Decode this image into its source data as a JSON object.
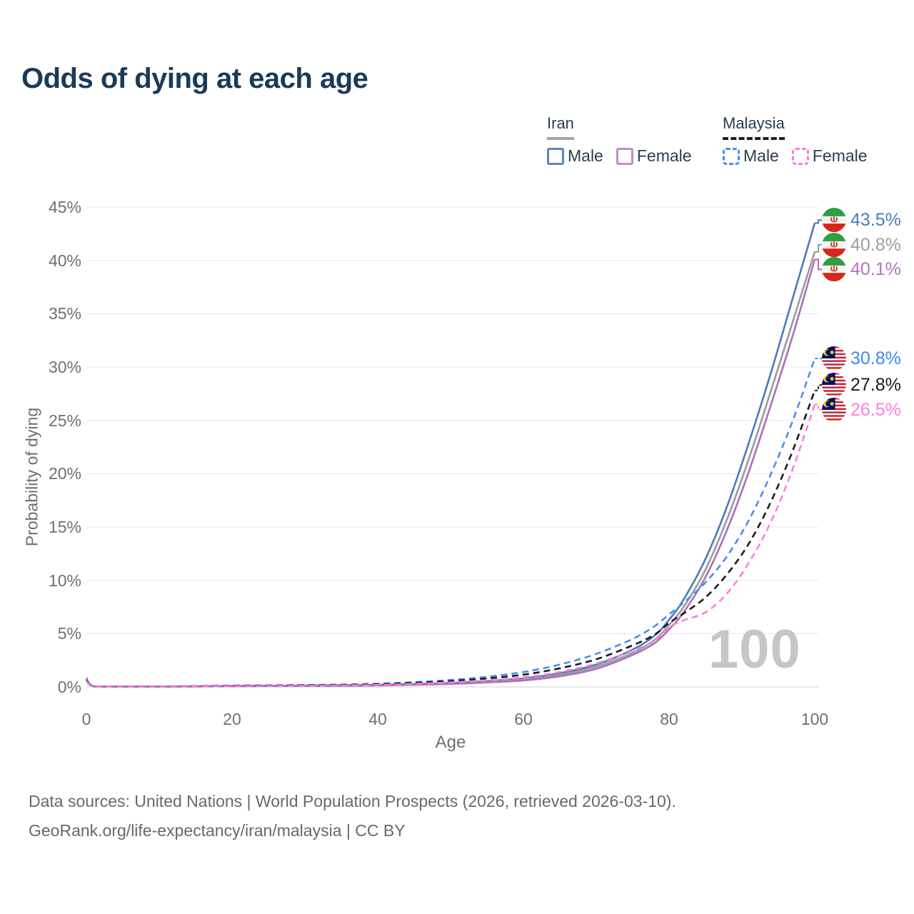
{
  "header": {
    "title": "Odds of dying at each age"
  },
  "legend": {
    "groups": [
      {
        "country": "Iran",
        "line_style": "solid",
        "underline_color": "#a4a4a4",
        "items": [
          {
            "label": "Male",
            "color": "#5b84c4",
            "dashed": false
          },
          {
            "label": "Female",
            "color": "#c48bc8",
            "dashed": false
          }
        ]
      },
      {
        "country": "Malaysia",
        "line_style": "dashed",
        "underline_color": "#1c1c1c",
        "items": [
          {
            "label": "Male",
            "color": "#4a8df0",
            "dashed": true
          },
          {
            "label": "Female",
            "color": "#ff7de0",
            "dashed": true
          }
        ]
      }
    ]
  },
  "chart_data": {
    "type": "line",
    "title": "Odds of dying at each age",
    "xlabel": "Age",
    "ylabel": "Probability of dying",
    "xlim": [
      0,
      100
    ],
    "ylim": [
      0,
      45
    ],
    "x_ticks": [
      0,
      20,
      40,
      60,
      80,
      100
    ],
    "y_ticks": [
      0,
      5,
      10,
      15,
      20,
      25,
      30,
      35,
      40,
      45
    ],
    "y_tick_suffix": "%",
    "grid": "horizontal",
    "legend_position": "top-right",
    "watermark": "100",
    "x": [
      0,
      1,
      5,
      10,
      15,
      20,
      25,
      30,
      35,
      40,
      45,
      50,
      55,
      60,
      65,
      70,
      75,
      78,
      80,
      82,
      85,
      88,
      91,
      94,
      97,
      100
    ],
    "series": [
      {
        "key": "iran-male",
        "name": "Iran Male",
        "country": "Iran",
        "sex": "Male",
        "color": "#4a7bbd",
        "dashed": false,
        "flag": "iran",
        "end_label": "43.5%",
        "end_value": 43.5,
        "label_color": "#4a7bbd",
        "values": [
          0.85,
          0.07,
          0.04,
          0.04,
          0.06,
          0.09,
          0.11,
          0.13,
          0.16,
          0.2,
          0.28,
          0.38,
          0.55,
          0.8,
          1.3,
          2.1,
          3.5,
          4.8,
          6.3,
          8.2,
          12.0,
          17.0,
          23.0,
          29.5,
          36.5,
          43.5
        ]
      },
      {
        "key": "iran-both",
        "name": "Iran",
        "country": "Iran",
        "sex": "Both",
        "color": "#9b9b9b",
        "dashed": false,
        "flag": "iran",
        "end_label": "40.8%",
        "end_value": 40.8,
        "label_color": "#9e9e9e",
        "values": [
          0.8,
          0.06,
          0.035,
          0.035,
          0.05,
          0.08,
          0.1,
          0.11,
          0.14,
          0.17,
          0.24,
          0.33,
          0.48,
          0.7,
          1.15,
          1.9,
          3.2,
          4.4,
          5.8,
          7.5,
          11.0,
          15.8,
          21.5,
          27.8,
          34.3,
          40.8
        ]
      },
      {
        "key": "iran-female",
        "name": "Iran Female",
        "country": "Iran",
        "sex": "Female",
        "color": "#ab6fb8",
        "dashed": false,
        "flag": "iran",
        "end_label": "40.1%",
        "end_value": 40.1,
        "label_color": "#b373c2",
        "values": [
          0.75,
          0.06,
          0.03,
          0.03,
          0.04,
          0.06,
          0.08,
          0.09,
          0.11,
          0.14,
          0.2,
          0.28,
          0.42,
          0.6,
          1.0,
          1.7,
          3.0,
          4.1,
          5.4,
          7.0,
          10.3,
          14.8,
          20.3,
          26.5,
          33.0,
          40.1
        ]
      },
      {
        "key": "malaysia-male",
        "name": "Malaysia Male",
        "country": "Malaysia",
        "sex": "Male",
        "color": "#4a8df0",
        "dashed": true,
        "flag": "malaysia",
        "end_label": "30.8%",
        "end_value": 30.8,
        "label_color": "#3f86f2",
        "values": [
          0.65,
          0.05,
          0.03,
          0.04,
          0.08,
          0.12,
          0.15,
          0.18,
          0.22,
          0.3,
          0.45,
          0.65,
          0.95,
          1.4,
          2.1,
          3.1,
          4.5,
          5.7,
          6.8,
          7.9,
          9.8,
          12.3,
          15.7,
          20.0,
          25.0,
          30.8
        ]
      },
      {
        "key": "malaysia-both",
        "name": "Malaysia",
        "country": "Malaysia",
        "sex": "Both",
        "color": "#1c1c1c",
        "dashed": true,
        "flag": "malaysia",
        "end_label": "27.8%",
        "end_value": 27.8,
        "label_color": "#1c1c1c",
        "values": [
          0.6,
          0.05,
          0.03,
          0.035,
          0.06,
          0.1,
          0.12,
          0.15,
          0.19,
          0.25,
          0.38,
          0.55,
          0.8,
          1.15,
          1.75,
          2.6,
          3.9,
          4.9,
          6.0,
          6.9,
          8.4,
          10.6,
          13.5,
          17.4,
          22.2,
          27.8
        ]
      },
      {
        "key": "malaysia-female",
        "name": "Malaysia Female",
        "country": "Malaysia",
        "sex": "Female",
        "color": "#ff7de0",
        "dashed": true,
        "flag": "malaysia",
        "end_label": "26.5%",
        "end_value": 26.5,
        "label_color": "#ff7de0",
        "values": [
          0.55,
          0.04,
          0.025,
          0.03,
          0.05,
          0.07,
          0.09,
          0.11,
          0.14,
          0.19,
          0.28,
          0.42,
          0.62,
          0.9,
          1.4,
          2.2,
          3.4,
          4.3,
          5.6,
          6.25,
          7.0,
          8.8,
          11.7,
          15.5,
          20.5,
          26.5
        ]
      }
    ]
  },
  "footer": {
    "line1": "Data sources: United Nations | World Population Prospects (2026, retrieved 2026-03-10).",
    "line2": "GeoRank.org/life-expectancy/iran/malaysia | CC BY"
  }
}
